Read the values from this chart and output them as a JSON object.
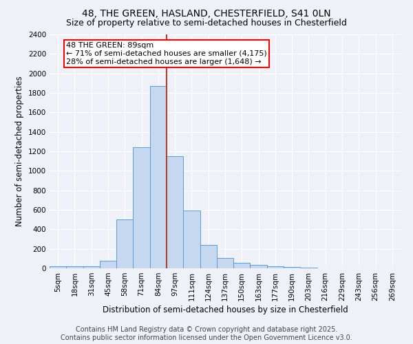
{
  "title1": "48, THE GREEN, HASLAND, CHESTERFIELD, S41 0LN",
  "title2": "Size of property relative to semi-detached houses in Chesterfield",
  "xlabel": "Distribution of semi-detached houses by size in Chesterfield",
  "ylabel": "Number of semi-detached properties",
  "footer1": "Contains HM Land Registry data © Crown copyright and database right 2025.",
  "footer2": "Contains public sector information licensed under the Open Government Licence v3.0.",
  "bar_labels": [
    "5sqm",
    "18sqm",
    "31sqm",
    "45sqm",
    "58sqm",
    "71sqm",
    "84sqm",
    "97sqm",
    "111sqm",
    "124sqm",
    "137sqm",
    "150sqm",
    "163sqm",
    "177sqm",
    "190sqm",
    "203sqm",
    "216sqm",
    "229sqm",
    "243sqm",
    "256sqm",
    "269sqm"
  ],
  "bar_values": [
    18,
    20,
    20,
    80,
    500,
    1240,
    1870,
    1150,
    590,
    240,
    105,
    60,
    35,
    20,
    15,
    5,
    3,
    2,
    1,
    1,
    0
  ],
  "bar_color": "#c5d8f0",
  "bar_edge_color": "#5b9bd5",
  "annotation_title": "48 THE GREEN: 89sqm",
  "annotation_line1": "← 71% of semi-detached houses are smaller (4,175)",
  "annotation_line2": "28% of semi-detached houses are larger (1,648) →",
  "vline_color": "#c0392b",
  "ylim": [
    0,
    2400
  ],
  "yticks": [
    0,
    200,
    400,
    600,
    800,
    1000,
    1200,
    1400,
    1600,
    1800,
    2000,
    2200,
    2400
  ],
  "bg_color": "#eef2f8",
  "plot_bg_color": "#eef2f8",
  "grid_color": "#ffffff",
  "title_fontsize": 10,
  "subtitle_fontsize": 9,
  "axis_label_fontsize": 8.5,
  "tick_fontsize": 7.5,
  "annotation_fontsize": 8,
  "footer_fontsize": 7
}
